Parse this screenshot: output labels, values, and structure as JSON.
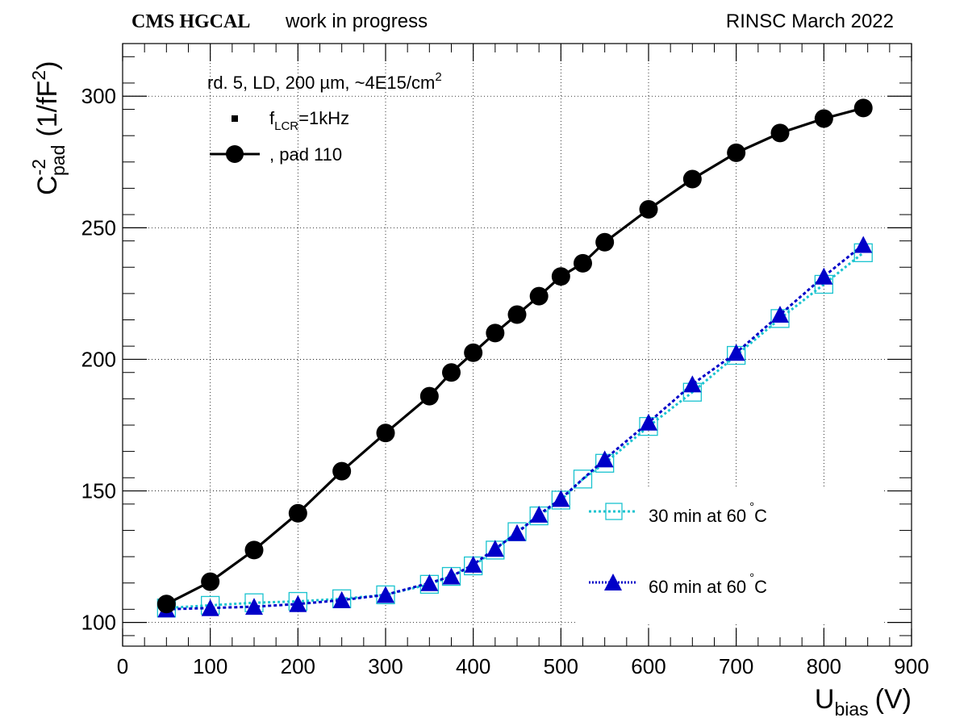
{
  "header": {
    "experiment": "CMS HGCAL",
    "status": "work in progress",
    "source": "RINSC March 2022"
  },
  "chart_data": {
    "type": "line",
    "xlabel": {
      "main": "U",
      "sub": "bias",
      "unit": "(V)"
    },
    "ylabel": {
      "main": "C",
      "sup": "-2",
      "sub": "pad",
      "unit_pre": "(1/fF",
      "unit_sup": "2",
      "unit_post": ")"
    },
    "xlim": [
      0,
      900
    ],
    "ylim": [
      91,
      320
    ],
    "x_ticks": [
      0,
      100,
      200,
      300,
      400,
      500,
      600,
      700,
      800,
      900
    ],
    "y_ticks": [
      100,
      150,
      200,
      250,
      300
    ],
    "grid": true,
    "legend_top": {
      "title_pre": "rd. 5, LD, 200 ",
      "title_mu": "µ",
      "title_post": "m, ~4E15/cm",
      "title_sup": "2",
      "freq_pre": "f",
      "freq_sub": "LCR",
      "freq_post": "=1kHz",
      "pad_label": ", pad 110"
    },
    "legend_bottom": {
      "entry1": "30 min at 60",
      "entry2": "60 min at 60",
      "deg": "°",
      "unit": "C"
    },
    "series": [
      {
        "name": ", pad 110",
        "color": "#000000",
        "marker": "circle",
        "x": [
          50,
          100,
          150,
          200,
          250,
          300,
          350,
          375,
          400,
          425,
          450,
          475,
          500,
          525,
          550,
          600,
          650,
          700,
          750,
          800,
          845
        ],
        "y": [
          107,
          115.5,
          127.5,
          141.5,
          157.5,
          172,
          186,
          195,
          202.5,
          210,
          217,
          224,
          231.5,
          236.5,
          244.5,
          257,
          268.5,
          278.5,
          286,
          291.5,
          295.5
        ]
      },
      {
        "name": "30 min at 60 °C",
        "color": "#19c3cf",
        "marker": "open-square",
        "x": [
          50,
          100,
          150,
          200,
          250,
          300,
          350,
          375,
          400,
          425,
          450,
          475,
          500,
          525,
          550,
          600,
          650,
          700,
          750,
          800,
          845
        ],
        "y": [
          105.5,
          106.5,
          107.5,
          108,
          109,
          110.5,
          114.5,
          117.5,
          121.5,
          127.5,
          134.5,
          140.5,
          146.5,
          154.5,
          160.5,
          174.5,
          187.5,
          201.5,
          215.5,
          228.5,
          240.5
        ]
      },
      {
        "name": "60 min at 60 °C",
        "color": "#0000c8",
        "marker": "filled-triangle",
        "x": [
          50,
          100,
          150,
          200,
          250,
          300,
          350,
          375,
          400,
          425,
          450,
          475,
          500,
          550,
          600,
          650,
          700,
          750,
          800,
          845
        ],
        "y": [
          105,
          105.5,
          106,
          107,
          108.5,
          110.5,
          115,
          117.5,
          122,
          128,
          134,
          141,
          147,
          162,
          176,
          190.5,
          202.5,
          217,
          231.5,
          243.5
        ]
      }
    ]
  }
}
